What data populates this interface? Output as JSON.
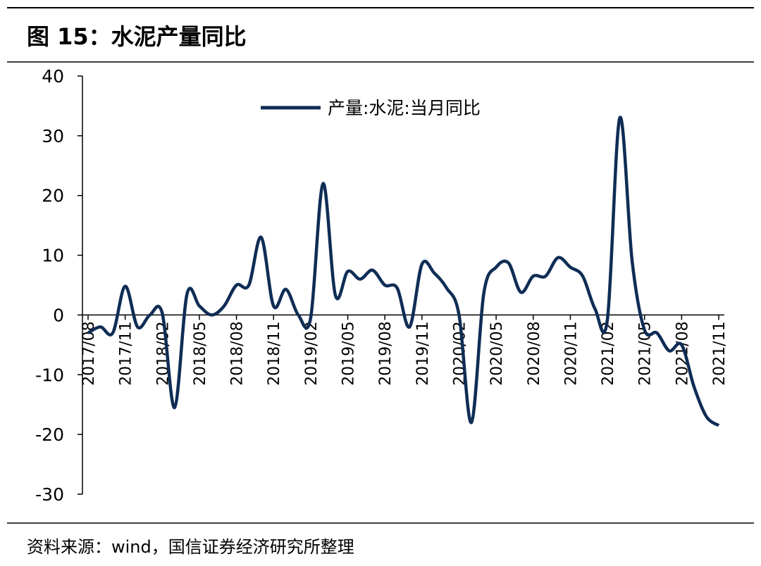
{
  "title": "图 15：水泥产量同比",
  "source": "资料来源：wind，国信证券经济研究所整理",
  "chart_data": {
    "type": "line",
    "categories": [
      "2017/08",
      null,
      null,
      "2017/11",
      null,
      null,
      "2018/02",
      null,
      null,
      "2018/05",
      null,
      null,
      "2018/08",
      null,
      null,
      "2018/11",
      null,
      null,
      "2019/02",
      null,
      null,
      "2019/05",
      null,
      null,
      "2019/08",
      null,
      null,
      "2019/11",
      null,
      null,
      "2020/02",
      null,
      null,
      "2020/05",
      null,
      null,
      "2020/08",
      null,
      null,
      "2020/11",
      null,
      null,
      "2021/02",
      null,
      null,
      "2021/05",
      null,
      null,
      "2021/08",
      null,
      null,
      "2021/11"
    ],
    "series": [
      {
        "name": "产量:水泥:当月同比",
        "color": "#0f2d55",
        "values": [
          -3,
          -2,
          -3,
          4.8,
          -2,
          0,
          0.3,
          -15.5,
          3.5,
          1.5,
          0,
          1.5,
          5,
          5,
          13,
          1.5,
          4.3,
          0,
          -0.5,
          22,
          3.3,
          7.3,
          6,
          7.5,
          5,
          4.5,
          -2,
          8.5,
          7,
          4.5,
          0,
          -18,
          3.6,
          8,
          8.7,
          3.8,
          6.5,
          6.5,
          9.6,
          8,
          6.5,
          1,
          -0.7,
          33,
          9,
          -2.5,
          -3,
          -6,
          -5,
          -12,
          -17,
          -18.5
        ]
      }
    ],
    "ylim": [
      -30,
      40
    ],
    "yticks": [
      -30,
      -20,
      -10,
      0,
      10,
      20,
      30,
      40
    ],
    "legend": "top"
  }
}
